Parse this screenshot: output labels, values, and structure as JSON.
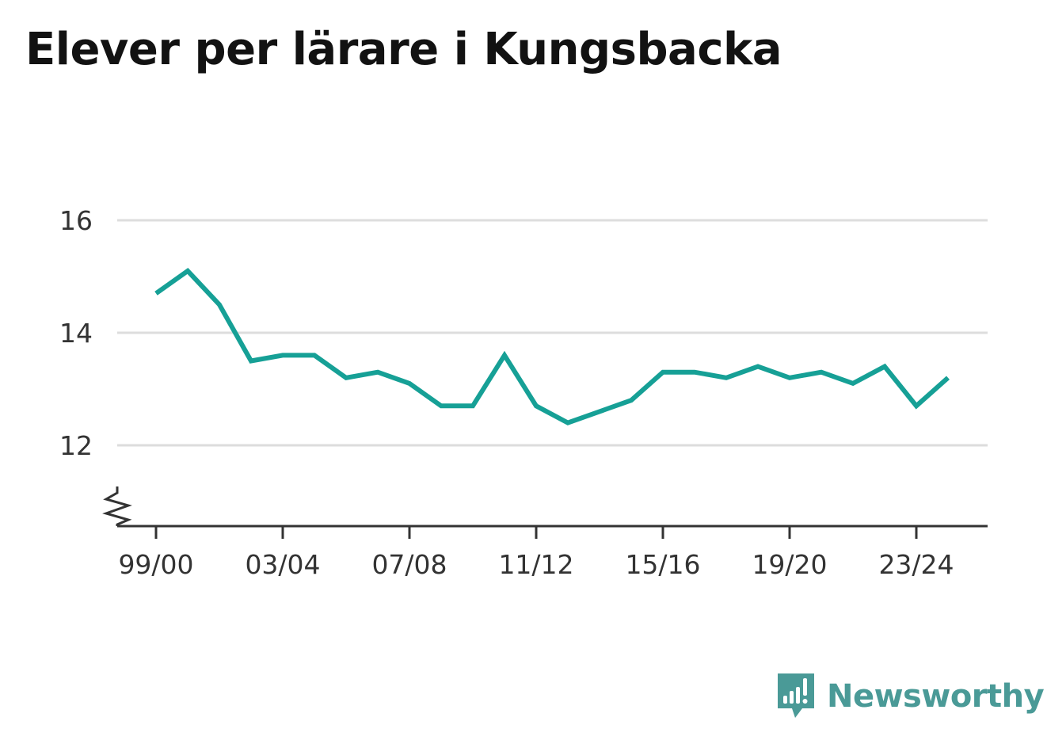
{
  "title": "Elever per lärare i Kungsbacka",
  "brand": {
    "name": "Newsworthy",
    "icon": "newsworthy-logo-icon",
    "color": "#4a9a97"
  },
  "chart_data": {
    "type": "line",
    "title": "Elever per lärare i Kungsbacka",
    "xlabel": "",
    "ylabel": "",
    "categories": [
      "99/00",
      "00/01",
      "01/02",
      "02/03",
      "03/04",
      "04/05",
      "05/06",
      "06/07",
      "07/08",
      "08/09",
      "09/10",
      "10/11",
      "11/12",
      "12/13",
      "13/14",
      "14/15",
      "15/16",
      "16/17",
      "17/18",
      "18/19",
      "19/20",
      "20/21",
      "21/22",
      "22/23",
      "23/24",
      "24/25"
    ],
    "series": [
      {
        "name": "",
        "color": "#16a096",
        "values": [
          14.7,
          15.1,
          14.5,
          13.5,
          13.6,
          13.6,
          13.2,
          13.3,
          13.1,
          12.7,
          12.7,
          13.6,
          12.7,
          12.4,
          12.6,
          12.8,
          13.3,
          13.3,
          13.2,
          13.4,
          13.2,
          13.3,
          13.1,
          13.4,
          12.7,
          13.2
        ]
      }
    ],
    "x_tick_labels": [
      "99/00",
      "03/04",
      "07/08",
      "11/12",
      "15/16",
      "19/20",
      "23/24"
    ],
    "y_ticks": [
      "12",
      "14",
      "16"
    ],
    "ylim": [
      10.6,
      16
    ],
    "grid": true,
    "axis_break": true,
    "legend": "none"
  }
}
